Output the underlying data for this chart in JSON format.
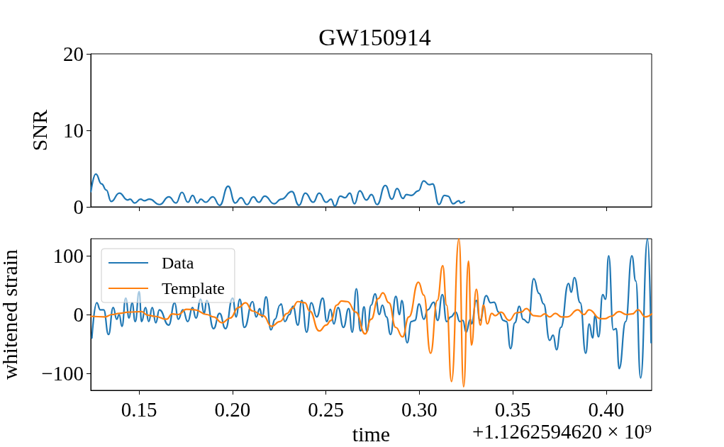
{
  "chart_data": [
    {
      "type": "line",
      "title": "GW150914",
      "ylabel": "SNR",
      "xlim": [
        0.1242,
        0.4243
      ],
      "xticks": [
        0.15,
        0.2,
        0.25,
        0.3,
        0.35,
        0.4
      ],
      "ylim": [
        0,
        20
      ],
      "yticks": [
        0,
        10,
        20
      ],
      "tick_labels": "y",
      "grid": false,
      "marker": "none",
      "line_style": "solid",
      "series": [
        {
          "color": "#1f77b4",
          "x": [
            0.1243,
            0.1269,
            0.13,
            0.1325,
            0.1351,
            0.1395,
            0.1439,
            0.1452,
            0.1477,
            0.1509,
            0.1528,
            0.1556,
            0.161,
            0.166,
            0.1698,
            0.173,
            0.1762,
            0.1787,
            0.1812,
            0.1831,
            0.1857,
            0.1895,
            0.1932,
            0.1977,
            0.2015,
            0.2046,
            0.2078,
            0.2112,
            0.2141,
            0.2173,
            0.2223,
            0.2261,
            0.2318,
            0.2356,
            0.239,
            0.2432,
            0.2464,
            0.2502,
            0.2527,
            0.2548,
            0.2577,
            0.2603,
            0.2628,
            0.2653,
            0.2681,
            0.2717,
            0.2744,
            0.2774,
            0.2818,
            0.2853,
            0.2881,
            0.2912,
            0.2931,
            0.2957,
            0.2995,
            0.3023,
            0.3052,
            0.3071,
            0.3105,
            0.3134,
            0.3153,
            0.3181,
            0.3211,
            0.3222,
            0.3241
          ],
          "values": [
            2.0,
            4.3,
            3.0,
            2.2,
            0.7,
            1.8,
            0.9,
            1.0,
            0.5,
            1.0,
            0.8,
            1.0,
            0.3,
            1.3,
            0.5,
            1.9,
            0.6,
            1.5,
            0.5,
            1.0,
            0.6,
            1.3,
            0.2,
            2.7,
            0.5,
            1.2,
            0.3,
            1.3,
            0.6,
            1.4,
            0.4,
            1.0,
            2.0,
            0.2,
            1.8,
            0.6,
            1.8,
            0.6,
            1.0,
            0.1,
            1.4,
            1.2,
            1.8,
            0.4,
            2.1,
            0.9,
            1.6,
            0.3,
            2.8,
            1.0,
            2.4,
            1.1,
            1.6,
            1.5,
            2.1,
            3.4,
            2.9,
            3.0,
            0.3,
            1.5,
            1.4,
            0.4,
            0.8,
            0.5,
            0.7
          ]
        }
      ]
    },
    {
      "type": "line",
      "xlabel": "time",
      "ylabel": "whitened strain",
      "annotations": [
        "+1.1262594620 × 10⁹"
      ],
      "xlim": [
        0.1242,
        0.4243
      ],
      "xticks": [
        {
          "value": 0.15,
          "label": "0.15"
        },
        {
          "value": 0.2,
          "label": "0.20"
        },
        {
          "value": 0.25,
          "label": "0.25"
        },
        {
          "value": 0.3,
          "label": "0.30"
        },
        {
          "value": 0.35,
          "label": "0.35"
        },
        {
          "value": 0.4,
          "label": "0.40"
        }
      ],
      "ylim": [
        -129,
        129
      ],
      "yticks": [
        {
          "value": -100,
          "label": "−100"
        },
        0,
        100
      ],
      "grid": false,
      "legend": "top left",
      "marker": "none",
      "line_style": "solid",
      "series": [
        {
          "name": "Data",
          "color": "#1f77b4",
          "x": [
            0.1248,
            0.1274,
            0.1293,
            0.1311,
            0.1337,
            0.1362,
            0.1381,
            0.1394,
            0.1409,
            0.1429,
            0.1447,
            0.1463,
            0.148,
            0.1501,
            0.1514,
            0.1535,
            0.1552,
            0.1571,
            0.159,
            0.1609,
            0.1659,
            0.1691,
            0.171,
            0.1735,
            0.1761,
            0.1786,
            0.1805,
            0.183,
            0.1849,
            0.1862,
            0.1899,
            0.1931,
            0.1963,
            0.2001,
            0.202,
            0.2039,
            0.2064,
            0.2108,
            0.2127,
            0.2146,
            0.2159,
            0.218,
            0.2206,
            0.2228,
            0.2254,
            0.2261,
            0.228,
            0.2305,
            0.2324,
            0.235,
            0.2371,
            0.2397,
            0.2422,
            0.2451,
            0.2483,
            0.2505,
            0.2524,
            0.2543,
            0.2565,
            0.2594,
            0.2622,
            0.2641,
            0.2663,
            0.2685,
            0.2704,
            0.272,
            0.2742,
            0.2763,
            0.2786,
            0.2802,
            0.2824,
            0.2846,
            0.2874,
            0.2894,
            0.2906,
            0.2935,
            0.2957,
            0.2976,
            0.2999,
            0.3024,
            0.3045,
            0.3077,
            0.3098,
            0.3123,
            0.3146,
            0.3168,
            0.3195,
            0.3216,
            0.3233,
            0.325,
            0.3273,
            0.3279,
            0.3305,
            0.3324,
            0.3358,
            0.3381,
            0.34,
            0.3425,
            0.345,
            0.3466,
            0.3488,
            0.3511,
            0.3535,
            0.3555,
            0.3583,
            0.3612,
            0.364,
            0.3665,
            0.3697,
            0.3716,
            0.3734,
            0.3757,
            0.3798,
            0.3813,
            0.3829,
            0.3861,
            0.389,
            0.3909,
            0.3927,
            0.394,
            0.3959,
            0.3981,
            0.3996,
            0.4013,
            0.4038,
            0.4053,
            0.4069,
            0.4104,
            0.4137,
            0.4158,
            0.4184,
            0.4221,
            0.424
          ],
          "values": [
            -40,
            20,
            8,
            8,
            -34,
            12,
            -8,
            0,
            -20,
            28,
            -6,
            20,
            -12,
            39,
            -12,
            12,
            -12,
            12,
            -14,
            8,
            -18,
            20,
            -8,
            8,
            -12,
            12,
            -6,
            26,
            2,
            24,
            -24,
            2,
            -24,
            28,
            -4,
            26,
            -22,
            22,
            -4,
            10,
            -4,
            30,
            -26,
            -8,
            16,
            18,
            -12,
            0,
            14,
            -18,
            24,
            -30,
            20,
            -4,
            28,
            -12,
            9,
            -16,
            12,
            -22,
            10,
            -30,
            44,
            -28,
            13,
            -29,
            16,
            35,
            0,
            16,
            -4,
            -34,
            31,
            0,
            24,
            -48,
            -12,
            -10,
            18,
            -8,
            8,
            21,
            -10,
            34,
            -12,
            -4,
            4,
            -12,
            -10,
            -30,
            -8,
            -16,
            24,
            -10,
            32,
            20,
            21,
            4,
            -10,
            -12,
            -58,
            -14,
            14,
            -8,
            -14,
            61,
            36,
            18,
            -44,
            -35,
            -60,
            -22,
            53,
            38,
            63,
            20,
            -66,
            -16,
            -40,
            -2,
            -38,
            34,
            26,
            100,
            -26,
            -24,
            -92,
            -12,
            100,
            57,
            -108,
            129,
            -48
          ]
        },
        {
          "name": "Template",
          "color": "#ff7f0e",
          "x": [
            0.1242,
            0.1318,
            0.1356,
            0.1394,
            0.1444,
            0.1514,
            0.1546,
            0.1583,
            0.1647,
            0.1678,
            0.171,
            0.1754,
            0.1799,
            0.1862,
            0.1899,
            0.1944,
            0.1988,
            0.2032,
            0.207,
            0.2108,
            0.2165,
            0.2209,
            0.2254,
            0.2293,
            0.2318,
            0.235,
            0.2388,
            0.2413,
            0.2464,
            0.2502,
            0.2527,
            0.2558,
            0.2584,
            0.2615,
            0.266,
            0.271,
            0.2742,
            0.278,
            0.2805,
            0.2837,
            0.2874,
            0.291,
            0.2944,
            0.2995,
            0.3024,
            0.306,
            0.3096,
            0.3125,
            0.3146,
            0.3172,
            0.3212,
            0.3237,
            0.3263,
            0.3279,
            0.3305,
            0.3326,
            0.3343,
            0.3364,
            0.3387,
            0.3406,
            0.3437,
            0.3481,
            0.3519,
            0.3545,
            0.3572,
            0.3614,
            0.3646,
            0.3671,
            0.3697,
            0.3728,
            0.376,
            0.3791,
            0.3848,
            0.388,
            0.3908,
            0.3969,
            0.3994,
            0.4025,
            0.4069,
            0.4107,
            0.4139,
            0.417,
            0.4209,
            0.4243
          ],
          "values": [
            -3,
            -4,
            0,
            2,
            4,
            5,
            -1,
            -3,
            -8,
            1,
            0,
            9,
            8,
            0,
            -4,
            -14,
            -6,
            12,
            20,
            6,
            -2,
            -20,
            -12,
            2,
            10,
            22,
            20,
            6,
            -28,
            -18,
            -10,
            16,
            23,
            22,
            4,
            -33,
            -8,
            27,
            37,
            20,
            -22,
            -38,
            -4,
            55,
            33,
            -66,
            24,
            83,
            16,
            -114,
            129,
            -123,
            91,
            -52,
            43,
            -18,
            16,
            -16,
            2,
            -2,
            4,
            -10,
            3,
            4,
            10,
            -2,
            -3,
            1,
            -4,
            2,
            -4,
            -4,
            8,
            0,
            8,
            -7,
            -7,
            -3,
            5,
            0,
            1,
            8,
            -4,
            1
          ]
        }
      ]
    }
  ]
}
